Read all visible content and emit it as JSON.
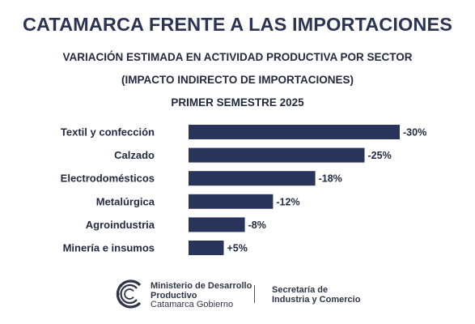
{
  "header": {
    "title": "CATAMARCA FRENTE A LAS IMPORTACIONES",
    "subtitle_1": "VARIACIÓN ESTIMADA EN ACTIVIDAD PRODUCTIVA POR SECTOR",
    "subtitle_2": "(IMPACTO INDIRECTO DE IMPORTACIONES)",
    "subtitle_3": "PRIMER SEMESTRE 2025"
  },
  "chart_data": {
    "type": "bar",
    "orientation": "horizontal",
    "categories": [
      "Textil y confección",
      "Calzado",
      "Electrodomésticos",
      "Metalúrgica",
      "Agroindustria",
      "Minería e insumos"
    ],
    "values": [
      -30,
      -25,
      -18,
      -12,
      -8,
      5
    ],
    "data_labels": [
      "-30%",
      "-25%",
      "-18%",
      "-12%",
      "-8%",
      "+5%"
    ],
    "bar_color": "#283459",
    "grid": false,
    "legend": "none"
  },
  "footer": {
    "ministry_line_1": "Ministerio de Desarrollo",
    "ministry_line_2": "Productivo",
    "ministry_line_3": "Catamarca Gobierno",
    "secretaria_line_1": "Secretaría de",
    "secretaria_line_2": "Industria y Comercio",
    "logo_icon": "catamarca-c-logo-icon"
  }
}
